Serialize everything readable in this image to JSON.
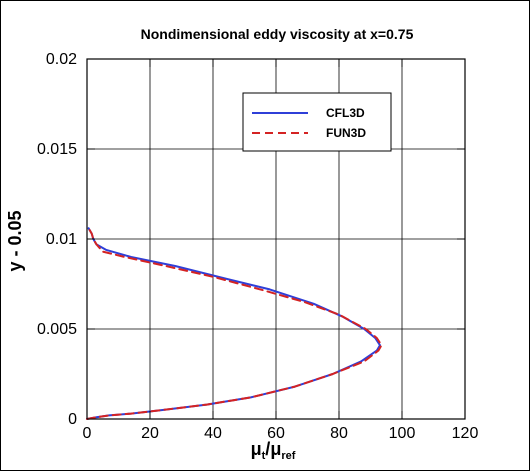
{
  "chart_data": {
    "type": "line",
    "title": "Nondimensional eddy viscosity at x=0.75",
    "xlabel_parts": {
      "main_1": "μ",
      "sub_1": "t",
      "slash": "/",
      "main_2": "μ",
      "sub_2": "ref"
    },
    "ylabel": "y - 0.05",
    "xlim": [
      0,
      120
    ],
    "ylim": [
      0,
      0.02
    ],
    "x_ticks": [
      0,
      20,
      40,
      60,
      80,
      100,
      120
    ],
    "y_ticks": [
      0,
      0.005,
      0.01,
      0.015,
      0.02
    ],
    "x_tick_labels": [
      "0",
      "20",
      "40",
      "60",
      "80",
      "100",
      "120"
    ],
    "y_tick_labels": [
      "0",
      "0.005",
      "0.01",
      "0.015",
      "0.02"
    ],
    "grid": true,
    "legend": {
      "position": "top-right",
      "entries": [
        {
          "name": "CFL3D",
          "style": "solid",
          "color": "#2f3fd8"
        },
        {
          "name": "FUN3D",
          "style": "dashed",
          "color": "#d42323"
        }
      ]
    },
    "series": [
      {
        "name": "CFL3D",
        "color": "#2f3fd8",
        "dash": "solid",
        "points": [
          [
            0.0,
            0.0
          ],
          [
            3.0,
            0.0001
          ],
          [
            7.0,
            0.0002
          ],
          [
            14.0,
            0.0003
          ],
          [
            24.0,
            0.0005
          ],
          [
            38.0,
            0.0008
          ],
          [
            52.0,
            0.0012
          ],
          [
            66.0,
            0.0018
          ],
          [
            78.0,
            0.0025
          ],
          [
            87.0,
            0.0032
          ],
          [
            92.0,
            0.0038
          ],
          [
            93.0,
            0.0041
          ],
          [
            91.5,
            0.0045
          ],
          [
            88.0,
            0.005
          ],
          [
            81.0,
            0.0057
          ],
          [
            72.0,
            0.0064
          ],
          [
            58.0,
            0.0072
          ],
          [
            44.0,
            0.0078
          ],
          [
            28.0,
            0.0085
          ],
          [
            14.0,
            0.009
          ],
          [
            6.0,
            0.0094
          ],
          [
            3.0,
            0.0097
          ],
          [
            2.0,
            0.01
          ],
          [
            1.5,
            0.0103
          ],
          [
            0.5,
            0.0106
          ]
        ]
      },
      {
        "name": "FUN3D",
        "color": "#d42323",
        "dash": "dashed",
        "points": [
          [
            0.0,
            0.0
          ],
          [
            3.0,
            0.0001
          ],
          [
            7.0,
            0.0002
          ],
          [
            14.0,
            0.0003
          ],
          [
            24.0,
            0.0005
          ],
          [
            38.0,
            0.0008
          ],
          [
            52.0,
            0.0012
          ],
          [
            66.0,
            0.0018
          ],
          [
            78.0,
            0.0025
          ],
          [
            88.0,
            0.0032
          ],
          [
            92.5,
            0.0038
          ],
          [
            93.5,
            0.0041
          ],
          [
            92.0,
            0.0045
          ],
          [
            88.5,
            0.005
          ],
          [
            80.0,
            0.0058
          ],
          [
            69.0,
            0.0065
          ],
          [
            55.0,
            0.0072
          ],
          [
            40.0,
            0.0079
          ],
          [
            25.0,
            0.0085
          ],
          [
            12.0,
            0.009
          ],
          [
            5.0,
            0.0093
          ],
          [
            3.0,
            0.0097
          ],
          [
            2.0,
            0.01
          ],
          [
            1.5,
            0.0103
          ],
          [
            0.5,
            0.0106
          ]
        ]
      }
    ]
  }
}
